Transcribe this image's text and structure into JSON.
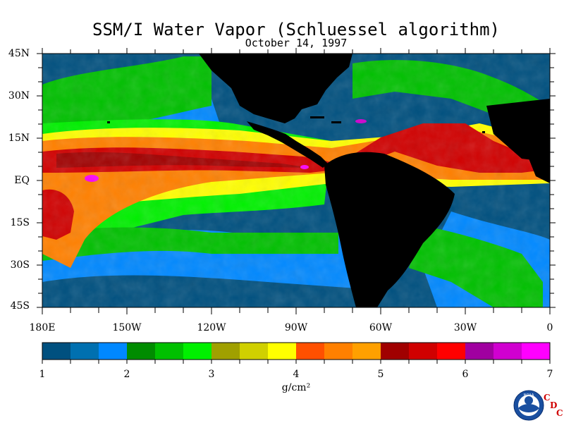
{
  "title": "SSM/I Water Vapor (Schluessel algorithm)",
  "date": "October 14, 1997",
  "lat_labels": [
    "45N",
    "30N",
    "15N",
    "EQ",
    "15S",
    "30S",
    "45S"
  ],
  "lon_labels": [
    "180E",
    "150W",
    "120W",
    "90W",
    "60W",
    "30W",
    "0"
  ],
  "colorbar": {
    "tick_labels": [
      "1",
      "2",
      "3",
      "4",
      "5",
      "6",
      "7"
    ],
    "units": "g/cm²",
    "colors": [
      "#00507f",
      "#0070b0",
      "#0088ff",
      "#008c00",
      "#00c000",
      "#00f000",
      "#a0a000",
      "#d0d000",
      "#ffff00",
      "#ff5000",
      "#ff8000",
      "#ffa000",
      "#a00000",
      "#d00000",
      "#ff0000",
      "#a000a0",
      "#d000d0",
      "#ff00ff"
    ]
  },
  "colors": {
    "land": "#000000",
    "background": "#ffffff"
  },
  "logo": {
    "noaa": "NOAA",
    "cdc": [
      "C",
      "D",
      "C"
    ]
  }
}
